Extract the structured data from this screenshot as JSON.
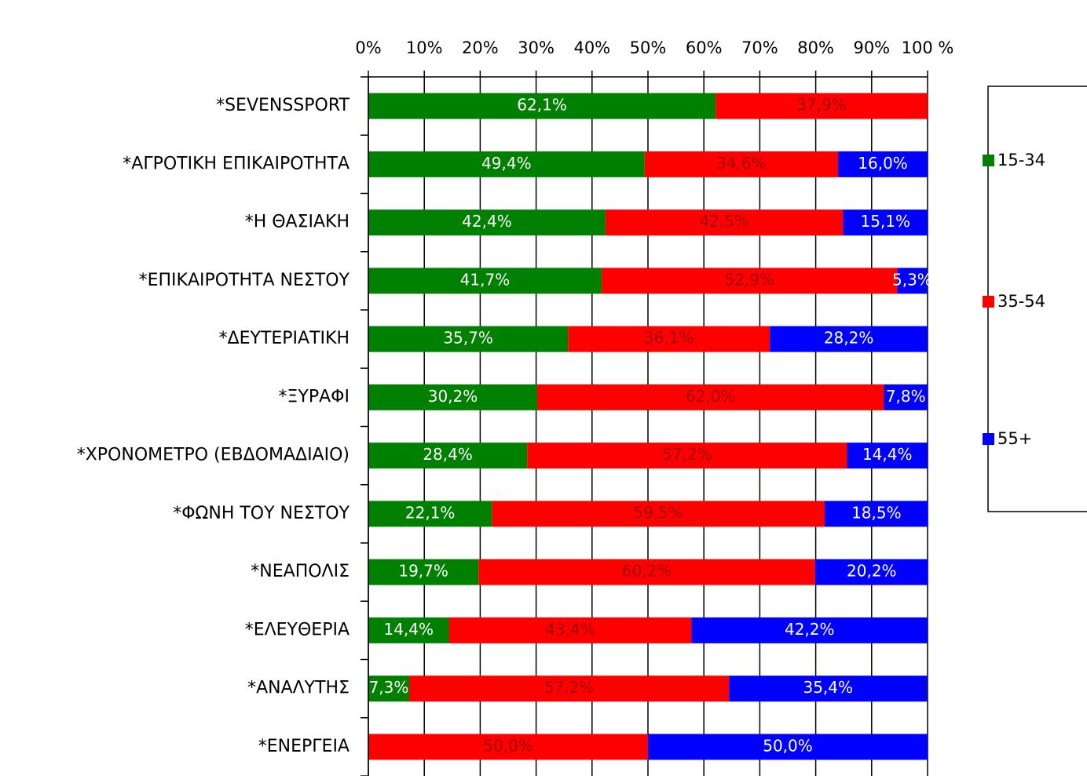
{
  "chart_data": {
    "type": "stacked-bar-horizontal",
    "categories": [
      "*SEVENSSPORT",
      "*ΑΓΡΟΤΙΚΗ ΕΠΙΚΑΙΡΟΤΗΤΑ",
      "*Η ΘΑΣΙΑΚΗ",
      "*ΕΠΙΚΑΙΡΟΤΗΤΑ ΝΕΣΤΟΥ",
      "*ΔΕΥΤΕΡΙΑΤΙΚΗ",
      "*ΞΥΡΑΦΙ",
      "*ΧΡΟΝΟΜΕΤΡΟ (ΕΒΔΟΜΑΔΙΑΙΟ)",
      "*ΦΩΝΗ ΤΟΥ ΝΕΣΤΟΥ",
      "*ΝΕΑΠΟΛΙΣ",
      "*ΕΛΕΥΘΕΡΙΑ",
      "*ΑΝΑΛΥΤΗΣ",
      "*ΕΝΕΡΓΕΙΑ"
    ],
    "series": [
      {
        "name": "15-34",
        "color": "#008000",
        "label_color": "#ffffff",
        "values": [
          62.1,
          49.4,
          42.4,
          41.7,
          35.7,
          30.2,
          28.4,
          22.1,
          19.7,
          14.4,
          7.3,
          null
        ],
        "value_labels": [
          "62,1%",
          "49,4%",
          "42,4%",
          "41,7%",
          "35,7%",
          "30,2%",
          "28,4%",
          "22,1%",
          "19,7%",
          "14,4%",
          "7,3%",
          null
        ]
      },
      {
        "name": "35-54",
        "color": "#ff0000",
        "label_color": "#a00000",
        "values": [
          37.9,
          34.6,
          42.5,
          52.9,
          36.1,
          62.0,
          57.2,
          59.5,
          60.2,
          43.4,
          57.2,
          50.0
        ],
        "value_labels": [
          "37,9%",
          "34,6%",
          "42,5%",
          "52,9%",
          "36,1%",
          "62,0%",
          "57,2%",
          "59,5%",
          "60,2%",
          "43,4%",
          "57,2%",
          "50,0%"
        ]
      },
      {
        "name": "55+",
        "color": "#0000ff",
        "label_color": "#ffffff",
        "values": [
          null,
          16.0,
          15.1,
          5.3,
          28.2,
          7.8,
          14.4,
          18.5,
          20.2,
          42.2,
          35.4,
          50.0
        ],
        "value_labels": [
          null,
          "16,0%",
          "15,1%",
          "5,3%",
          "28,2%",
          "7,8%",
          "14,4%",
          "18,5%",
          "20,2%",
          "42,2%",
          "35,4%",
          "50,0%"
        ]
      }
    ],
    "xlim": [
      0,
      100
    ],
    "xticks": [
      {
        "value": 0,
        "label": "0%"
      },
      {
        "value": 10,
        "label": "10%"
      },
      {
        "value": 20,
        "label": "20%"
      },
      {
        "value": 30,
        "label": "30%"
      },
      {
        "value": 40,
        "label": "40%"
      },
      {
        "value": 50,
        "label": "50%"
      },
      {
        "value": 60,
        "label": "60%"
      },
      {
        "value": 70,
        "label": "70%"
      },
      {
        "value": 80,
        "label": "80%"
      },
      {
        "value": 90,
        "label": "90%"
      },
      {
        "value": 100,
        "label": "100 %"
      }
    ],
    "grid": true,
    "legend": "right"
  }
}
